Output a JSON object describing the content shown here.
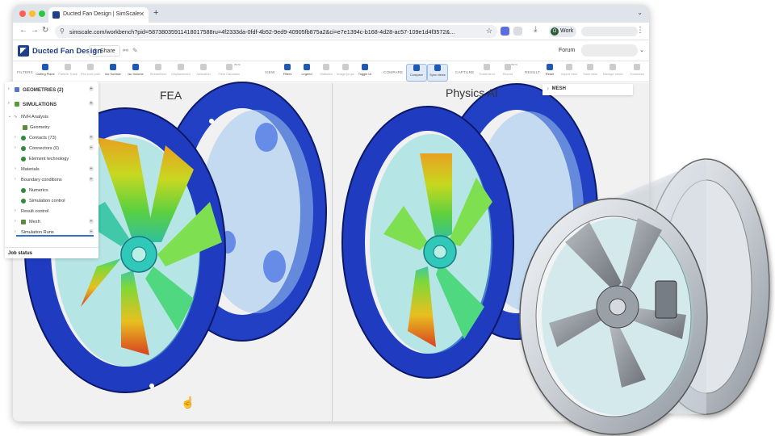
{
  "browser": {
    "tab_title": "Ducted Fan Design | SimScale",
    "url": "simscale.com/workbench?pid=58738035911418017588ru=4f2333da-0fdf-4b52-9ed9-40905fb875a2&ci=e7e1394c-b168-4d28-ac57-109e1d4f3572&...",
    "profile_label": "Work",
    "profile_initial": "O"
  },
  "header": {
    "project_title": "Ducted Fan Design",
    "share_label": "Share",
    "forum_label": "Forum"
  },
  "toolbar": {
    "groups": {
      "filters": "FILTERS",
      "view": "VIEW",
      "compare": "COMPARE",
      "capture": "CAPTURE",
      "result": "RESULT"
    },
    "filters": [
      "Cutting Plane",
      "Particle Trace",
      "Plot over path",
      "Iso Surface",
      "Iso Volume",
      "Streamlines",
      "Displacement",
      "Animation",
      "Field Calculator"
    ],
    "view": [
      "Filters",
      "Legend",
      "Statistics",
      "Image props",
      "Toggle UI"
    ],
    "compare": [
      "Compare",
      "Sync views"
    ],
    "capture": [
      "Screenshot",
      "Record"
    ],
    "result": [
      "Reset",
      "Import view",
      "Save view",
      "Manage views",
      "Download"
    ],
    "beta_label": "BETA"
  },
  "viewer": {
    "left_title": "FEA",
    "right_title": "Physics AI"
  },
  "tree": {
    "geometries": "GEOMETRIES (2)",
    "simulations": "SIMULATIONS",
    "items": [
      {
        "label": "NVH Analysis"
      },
      {
        "label": "Geometry"
      },
      {
        "label": "Contacts (73)"
      },
      {
        "label": "Connectors (0)"
      },
      {
        "label": "Element technology"
      },
      {
        "label": "Materials"
      },
      {
        "label": "Boundary conditions"
      },
      {
        "label": "Numerics"
      },
      {
        "label": "Simulation control"
      },
      {
        "label": "Result control"
      },
      {
        "label": "Mesh"
      },
      {
        "label": "Simulation Runs"
      }
    ],
    "job_status": "Job status"
  },
  "mesh_panel": {
    "label": "MESH"
  },
  "colors": {
    "brand": "#1e3f8a",
    "accent": "#2e6fd0",
    "check": "#2f8a3c",
    "housing": "#1f3fc0"
  }
}
